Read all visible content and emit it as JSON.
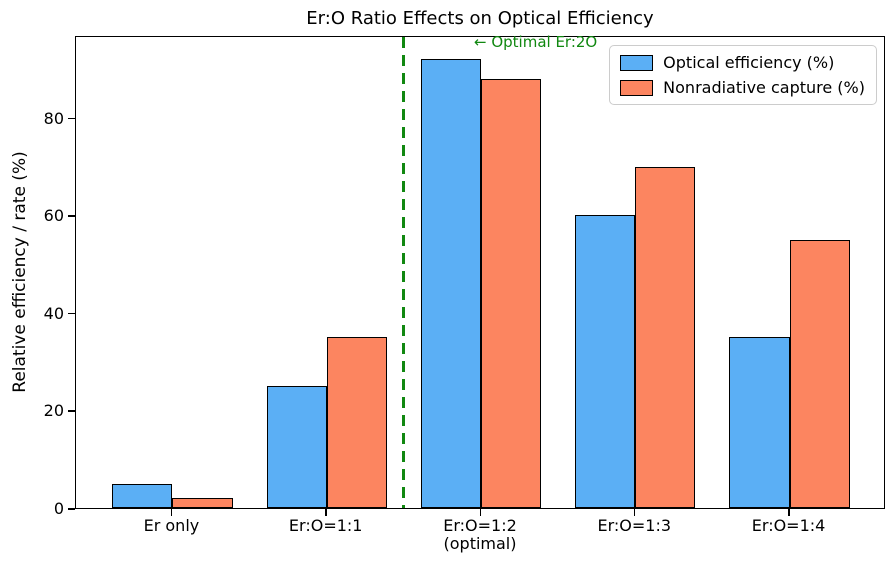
{
  "chart_data": {
    "type": "bar",
    "title": "Er:O Ratio Effects on Optical Efficiency",
    "xlabel": "",
    "ylabel": "Relative efficiency / rate (%)",
    "categories": [
      "Er only",
      "Er:O=1:1",
      "Er:O=1:2\n(optimal)",
      "Er:O=1:3",
      "Er:O=1:4"
    ],
    "series": [
      {
        "name": "Optical efficiency (%)",
        "color": "#5BAFF5",
        "edge_color": "#000000",
        "values": [
          5,
          25,
          92,
          60,
          35
        ]
      },
      {
        "name": "Nonradiative capture (%)",
        "color": "#FC8560",
        "edge_color": "#000000",
        "values": [
          2,
          35,
          88,
          70,
          55
        ]
      }
    ],
    "yticks": [
      0,
      20,
      40,
      60,
      80
    ],
    "ylim": [
      0,
      97
    ],
    "grid": false,
    "legend_position": "upper-right",
    "vline": {
      "x": 1.5,
      "color": "#118811",
      "style": "dashed",
      "width": 3
    },
    "annotation": {
      "text": "← Optimal Er:2O",
      "color": "#118811"
    }
  }
}
